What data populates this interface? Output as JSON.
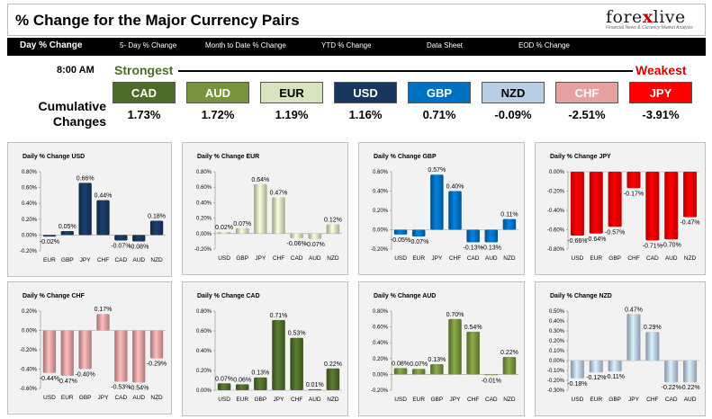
{
  "header": {
    "title": "% Change for the Major Currency Pairs",
    "logo_brand_a": "fore",
    "logo_brand_x": "x",
    "logo_brand_b": "live",
    "logo_tagline": "Financial News & Currency Market Analysis"
  },
  "tabs": [
    {
      "label": "Day % Change"
    },
    {
      "label": "5- Day % Change"
    },
    {
      "label": "Month to Date % Change"
    },
    {
      "label": "YTD % Change"
    },
    {
      "label": "Data Sheet"
    },
    {
      "label": "EOD % Change"
    }
  ],
  "summary": {
    "time": "8:00 AM",
    "strongest": "Strongest",
    "weakest": "Weakest",
    "cumulative_line1": "Cumulative",
    "cumulative_line2": "Changes",
    "pills": [
      {
        "ccy": "CAD",
        "value": "1.73%",
        "color": "#4e6b2a",
        "text": "#ffffff"
      },
      {
        "ccy": "AUD",
        "value": "1.72%",
        "color": "#77933c",
        "text": "#ffffff"
      },
      {
        "ccy": "EUR",
        "value": "1.19%",
        "color": "#d7e4bd",
        "text": "#000000"
      },
      {
        "ccy": "USD",
        "value": "1.16%",
        "color": "#17375e",
        "text": "#ffffff"
      },
      {
        "ccy": "GBP",
        "value": "0.71%",
        "color": "#0070c0",
        "text": "#ffffff"
      },
      {
        "ccy": "NZD",
        "value": "-0.09%",
        "color": "#b9cde5",
        "text": "#000000"
      },
      {
        "ccy": "CHF",
        "value": "-2.51%",
        "color": "#e6a1a1",
        "text": "#ffffff"
      },
      {
        "ccy": "JPY",
        "value": "-3.91%",
        "color": "#ff0000",
        "text": "#ffffff"
      }
    ]
  },
  "chart_data": [
    {
      "type": "bar",
      "title": "Daily % Change USD",
      "categories": [
        "EUR",
        "GBP",
        "JPY",
        "CHF",
        "CAD",
        "AUD",
        "NZD"
      ],
      "values": [
        -0.02,
        0.05,
        0.66,
        0.44,
        -0.07,
        -0.08,
        0.18
      ],
      "labels": [
        "-0.02%",
        "0.05%",
        "0.66%",
        "0.44%",
        "-0.07%",
        "-0.08%",
        "0.18%"
      ],
      "ylim": [
        -0.2,
        0.8
      ],
      "ticks": [
        -0.2,
        0,
        0.2,
        0.4,
        0.6,
        0.8
      ],
      "tick_labels": [
        "-0.20%",
        "0.00%",
        "0.20%",
        "0.40%",
        "0.60%",
        "0.80%"
      ],
      "color": "#17375e"
    },
    {
      "type": "bar",
      "title": "Daily % Change EUR",
      "categories": [
        "USD",
        "GBP",
        "JPY",
        "CHF",
        "CAD",
        "AUD",
        "NZD"
      ],
      "values": [
        0.02,
        0.07,
        0.64,
        0.47,
        -0.06,
        -0.07,
        0.12
      ],
      "labels": [
        "0.02%",
        "0.07%",
        "0.64%",
        "0.47%",
        "-0.06%",
        "-0.07%",
        "0.12%"
      ],
      "ylim": [
        -0.2,
        0.8
      ],
      "ticks": [
        -0.2,
        0,
        0.2,
        0.4,
        0.6,
        0.8
      ],
      "tick_labels": [
        "-0.20%",
        "0.00%",
        "0.20%",
        "0.40%",
        "0.60%",
        "0.80%"
      ],
      "color": "#d7e4bd"
    },
    {
      "type": "bar",
      "title": "Daily % Change GBP",
      "categories": [
        "USD",
        "EUR",
        "JPY",
        "CHF",
        "CAD",
        "AUD",
        "NZD"
      ],
      "values": [
        -0.05,
        -0.07,
        0.57,
        0.4,
        -0.13,
        -0.13,
        0.11
      ],
      "labels": [
        "-0.05%",
        "-0.07%",
        "0.57%",
        "0.40%",
        "-0.13%",
        "-0.13%",
        "0.11%"
      ],
      "ylim": [
        -0.2,
        0.6
      ],
      "ticks": [
        -0.2,
        0,
        0.2,
        0.4,
        0.6
      ],
      "tick_labels": [
        "-0.20%",
        "0.00%",
        "0.20%",
        "0.40%",
        "0.60%"
      ],
      "color": "#0070c0"
    },
    {
      "type": "bar",
      "title": "Daily % Change JPY",
      "categories": [
        "USD",
        "EUR",
        "GBP",
        "CHF",
        "CAD",
        "AUD",
        "NZD"
      ],
      "values": [
        -0.66,
        -0.64,
        -0.57,
        -0.17,
        -0.71,
        -0.7,
        -0.47
      ],
      "labels": [
        "-0.66%",
        "-0.64%",
        "-0.57%",
        "-0.17%",
        "-0.71%",
        "-0.70%",
        "-0.47%"
      ],
      "ylim": [
        -0.8,
        0
      ],
      "ticks": [
        -0.8,
        -0.6,
        -0.4,
        -0.2,
        0
      ],
      "tick_labels": [
        "-0.80%",
        "-0.60%",
        "-0.40%",
        "-0.20%",
        "0.00%"
      ],
      "color": "#ff0000"
    },
    {
      "type": "bar",
      "title": "Daily % Change CHF",
      "categories": [
        "USD",
        "EUR",
        "GBP",
        "JPY",
        "CAD",
        "AUD",
        "NZD"
      ],
      "values": [
        -0.44,
        -0.47,
        -0.4,
        0.17,
        -0.53,
        -0.54,
        -0.29
      ],
      "labels": [
        "-0.44%",
        "-0.47%",
        "-0.40%",
        "0.17%",
        "-0.53%",
        "-0.54%",
        "-0.29%"
      ],
      "ylim": [
        -0.6,
        0.2
      ],
      "ticks": [
        -0.6,
        -0.4,
        -0.2,
        0,
        0.2
      ],
      "tick_labels": [
        "-0.60%",
        "-0.40%",
        "-0.20%",
        "0.00%",
        "0.20%"
      ],
      "color": "#e6a1a1"
    },
    {
      "type": "bar",
      "title": "Daily % Change CAD",
      "categories": [
        "USD",
        "EUR",
        "GBP",
        "JPY",
        "CHF",
        "AUD",
        "NZD"
      ],
      "values": [
        0.07,
        0.06,
        0.13,
        0.71,
        0.53,
        0.01,
        0.22
      ],
      "labels": [
        "0.07%",
        "0.06%",
        "0.13%",
        "0.71%",
        "0.53%",
        "0.01%",
        "0.22%"
      ],
      "ylim": [
        0,
        0.8
      ],
      "ticks": [
        0,
        0.2,
        0.4,
        0.6,
        0.8
      ],
      "tick_labels": [
        "0.00%",
        "0.20%",
        "0.40%",
        "0.60%",
        "0.80%"
      ],
      "color": "#4e6b2a"
    },
    {
      "type": "bar",
      "title": "Daily % Change AUD",
      "categories": [
        "USD",
        "EUR",
        "GBP",
        "JPY",
        "CHF",
        "CAD",
        "NZD"
      ],
      "values": [
        0.08,
        0.07,
        0.13,
        0.7,
        0.54,
        -0.01,
        0.22
      ],
      "labels": [
        "0.08%",
        "0.07%",
        "0.13%",
        "0.70%",
        "0.54%",
        "-0.01%",
        "0.22%"
      ],
      "ylim": [
        -0.2,
        0.8
      ],
      "ticks": [
        -0.2,
        0,
        0.2,
        0.4,
        0.6,
        0.8
      ],
      "tick_labels": [
        "-0.20%",
        "0.00%",
        "0.20%",
        "0.40%",
        "0.60%",
        "0.80%"
      ],
      "color": "#77933c"
    },
    {
      "type": "bar",
      "title": "Daily % Change NZD",
      "categories": [
        "USD",
        "EUR",
        "GBP",
        "JPY",
        "CHF",
        "CAD",
        "AUD"
      ],
      "values": [
        -0.18,
        -0.12,
        -0.11,
        0.47,
        0.29,
        -0.22,
        -0.22
      ],
      "labels": [
        "-0.18%",
        "-0.12%",
        "-0.11%",
        "0.47%",
        "0.29%",
        "-0.22%",
        "-0.22%"
      ],
      "ylim": [
        -0.3,
        0.5
      ],
      "ticks": [
        -0.3,
        -0.2,
        -0.1,
        0,
        0.1,
        0.2,
        0.3,
        0.4,
        0.5
      ],
      "tick_labels": [
        "-0.30%",
        "-0.20%",
        "-0.10%",
        "0.00%",
        "0.10%",
        "0.20%",
        "0.30%",
        "0.40%",
        "0.50%"
      ],
      "color": "#b9cde5"
    }
  ]
}
